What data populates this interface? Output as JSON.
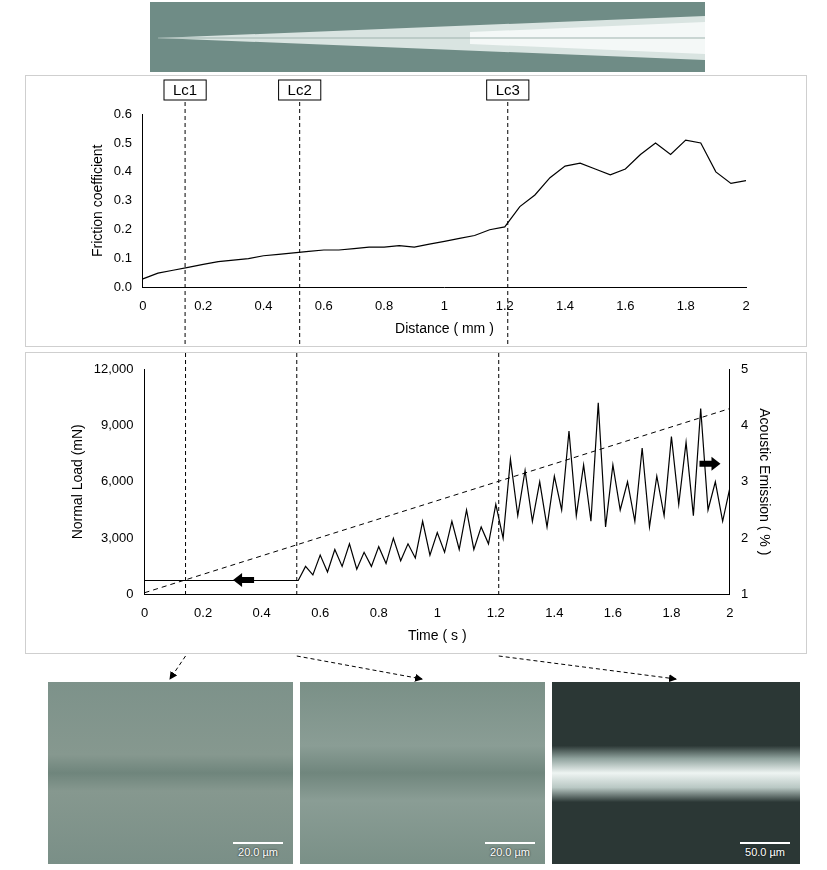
{
  "chart_data": [
    {
      "type": "line",
      "x_label": "Distance ( mm )",
      "y_label": "Friction coefficient",
      "x": [
        0,
        0.05,
        0.1,
        0.15,
        0.2,
        0.25,
        0.3,
        0.35,
        0.4,
        0.45,
        0.5,
        0.55,
        0.6,
        0.65,
        0.7,
        0.75,
        0.8,
        0.85,
        0.9,
        0.95,
        1.0,
        1.05,
        1.1,
        1.15,
        1.2,
        1.25,
        1.3,
        1.35,
        1.4,
        1.45,
        1.5,
        1.55,
        1.6,
        1.65,
        1.7,
        1.75,
        1.8,
        1.85,
        1.9,
        1.95,
        2.0
      ],
      "series": [
        {
          "color": "#000000",
          "line_style": "solid",
          "values": [
            0.03,
            0.05,
            0.06,
            0.07,
            0.08,
            0.09,
            0.095,
            0.1,
            0.11,
            0.115,
            0.12,
            0.125,
            0.13,
            0.13,
            0.135,
            0.14,
            0.14,
            0.145,
            0.14,
            0.15,
            0.16,
            0.17,
            0.18,
            0.2,
            0.21,
            0.28,
            0.32,
            0.38,
            0.42,
            0.43,
            0.41,
            0.39,
            0.41,
            0.46,
            0.5,
            0.46,
            0.51,
            0.5,
            0.4,
            0.36,
            0.37
          ]
        }
      ],
      "xlim": [
        0,
        2
      ],
      "xticks": [
        0,
        0.2,
        0.4,
        0.6,
        0.8,
        1,
        1.2,
        1.4,
        1.6,
        1.8,
        2
      ],
      "ylim": [
        0,
        0.6
      ],
      "yticks": [
        {
          "value": 0,
          "label": "0.0"
        },
        0.1,
        0.2,
        0.3,
        0.4,
        0.5,
        0.6
      ],
      "grid": false,
      "annotations": [
        {
          "text": "Lc1",
          "x": 0.14
        },
        {
          "text": "Lc2",
          "x": 0.52
        },
        {
          "text": "Lc3",
          "x": 1.21
        }
      ]
    },
    {
      "type": "line",
      "x_label": "Time ( s )",
      "y_label": "Normal Load (mN)",
      "y2_label": "Acoustic Emission ( % )",
      "series": [
        {
          "color": "#000000",
          "line_style": "dashed",
          "axis": "y",
          "x": [
            0,
            2
          ],
          "values": [
            100,
            9900
          ]
        },
        {
          "color": "#000000",
          "line_style": "solid",
          "axis": "y2",
          "x": [
            0,
            0.025,
            0.05,
            0.075,
            0.1,
            0.125,
            0.15,
            0.175,
            0.2,
            0.225,
            0.25,
            0.275,
            0.3,
            0.325,
            0.35,
            0.375,
            0.4,
            0.425,
            0.45,
            0.475,
            0.5,
            0.525,
            0.55,
            0.575,
            0.6,
            0.625,
            0.65,
            0.675,
            0.7,
            0.725,
            0.75,
            0.775,
            0.8,
            0.825,
            0.85,
            0.875,
            0.9,
            0.925,
            0.95,
            0.975,
            1.0,
            1.025,
            1.05,
            1.075,
            1.1,
            1.125,
            1.15,
            1.175,
            1.2,
            1.225,
            1.25,
            1.275,
            1.3,
            1.325,
            1.35,
            1.375,
            1.4,
            1.425,
            1.45,
            1.475,
            1.5,
            1.525,
            1.55,
            1.575,
            1.6,
            1.625,
            1.65,
            1.675,
            1.7,
            1.725,
            1.75,
            1.775,
            1.8,
            1.825,
            1.85,
            1.875,
            1.9,
            1.925,
            1.95,
            1.975,
            2.0
          ],
          "values": [
            1.25,
            1.25,
            1.25,
            1.25,
            1.25,
            1.25,
            1.25,
            1.25,
            1.25,
            1.25,
            1.25,
            1.25,
            1.25,
            1.25,
            1.25,
            1.25,
            1.25,
            1.25,
            1.25,
            1.25,
            1.25,
            1.25,
            1.5,
            1.35,
            1.7,
            1.4,
            1.8,
            1.5,
            1.9,
            1.45,
            1.75,
            1.5,
            1.85,
            1.55,
            2.0,
            1.6,
            1.9,
            1.65,
            2.3,
            1.7,
            2.1,
            1.75,
            2.3,
            1.8,
            2.5,
            1.8,
            2.2,
            1.9,
            2.6,
            2.0,
            3.4,
            2.4,
            3.2,
            2.3,
            3.0,
            2.2,
            3.1,
            2.5,
            3.9,
            2.4,
            3.3,
            2.3,
            4.4,
            2.2,
            3.3,
            2.5,
            3.0,
            2.3,
            3.6,
            2.2,
            3.1,
            2.4,
            3.8,
            2.6,
            3.7,
            2.4,
            4.3,
            2.5,
            3.0,
            2.3,
            2.9
          ]
        }
      ],
      "xlim": [
        0,
        2
      ],
      "xticks": [
        0,
        0.2,
        0.4,
        0.6,
        0.8,
        1,
        1.2,
        1.4,
        1.6,
        1.8,
        2
      ],
      "ylim": [
        0,
        12000
      ],
      "yticks": [
        0,
        {
          "value": 3000,
          "label": "3,000"
        },
        {
          "value": 6000,
          "label": "6,000"
        },
        {
          "value": 9000,
          "label": "9,000"
        },
        {
          "value": 12000,
          "label": "12,000"
        }
      ],
      "y2lim": [
        1,
        5
      ],
      "y2ticks": [
        1,
        2,
        3,
        4,
        5
      ],
      "grid": false
    }
  ],
  "micrographs": [
    {
      "scale_bar": "20.0 µm"
    },
    {
      "scale_bar": "20.0 µm"
    },
    {
      "scale_bar": "50.0 µm"
    }
  ]
}
